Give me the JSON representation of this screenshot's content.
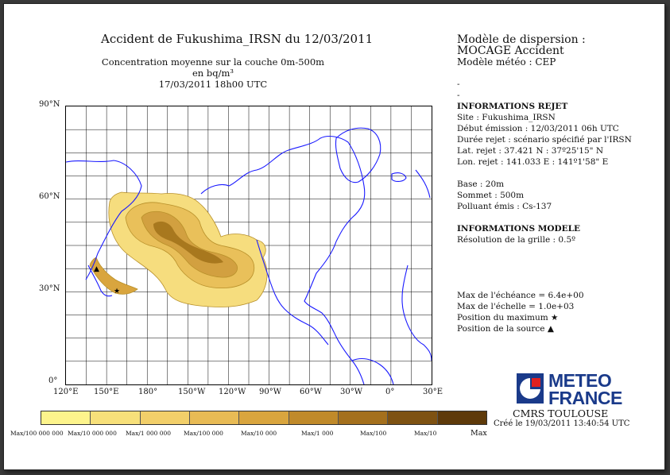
{
  "title": "Accident de Fukushima_IRSN du 12/03/2011",
  "subtitle_line1": "Concentration moyenne sur la couche 0m-500m en bq/m³",
  "subtitle_line2": "17/03/2011 18h00 UTC",
  "info": {
    "model_line1": "Modèle de dispersion :",
    "model_line2": "MOCAGE Accident",
    "meteo": "Modèle météo : CEP",
    "dash1": "-",
    "dash2": "-",
    "release_header": "INFORMATIONS REJET",
    "site": "Site : Fukushima_IRSN",
    "start": "Début émission : 12/03/2011 06h UTC",
    "duration": "Durée rejet : scénario spécifié par l'IRSN",
    "lat": "Lat. rejet : 37.421 N : 37º25'15\" N",
    "lon": "Lon. rejet : 141.033 E : 141º1'58\" E",
    "base": "Base : 20m",
    "top": "Sommet : 500m",
    "pollutant": "Polluant émis : Cs-137",
    "model_header": "INFORMATIONS MODELE",
    "grid": "Résolution de la grille : 0.5º",
    "max_forecast": "Max de l'échéance = 6.4e+00",
    "max_scale": "Max de l'échelle = 1.0e+03",
    "max_position": "Position du maximum ★",
    "source_position": "Position de la source ▲"
  },
  "map": {
    "lat_labels": [
      "90°N",
      "60°N",
      "30°N",
      "0°"
    ],
    "lon_labels": [
      "120°E",
      "150°E",
      "180°",
      "150°W",
      "120°W",
      "90°W",
      "60°W",
      "30°W",
      "0°",
      "30°E"
    ],
    "coastline_color": "#1a1aff",
    "grid_color": "#000000"
  },
  "colorbar": {
    "colors": [
      "#fdf48c",
      "#f7e07a",
      "#f2cf6a",
      "#e8bb55",
      "#d9a53e",
      "#c08a2a",
      "#a4701d",
      "#7e5212",
      "#5e3a0a"
    ],
    "labels": [
      "Max/100 000 000",
      "Max/10 000 000",
      "Max/1 000 000",
      "Max/100 000",
      "Max/10 000",
      "Max/1 000",
      "Max/100",
      "Max/10",
      "Max"
    ]
  },
  "logo": {
    "line1": "METEO",
    "line2": "FRANCE",
    "color": "#1a3a8a"
  },
  "cmrs": "CMRS TOULOUSE",
  "created": "Créé le 19/03/2011 13:40:54 UTC"
}
